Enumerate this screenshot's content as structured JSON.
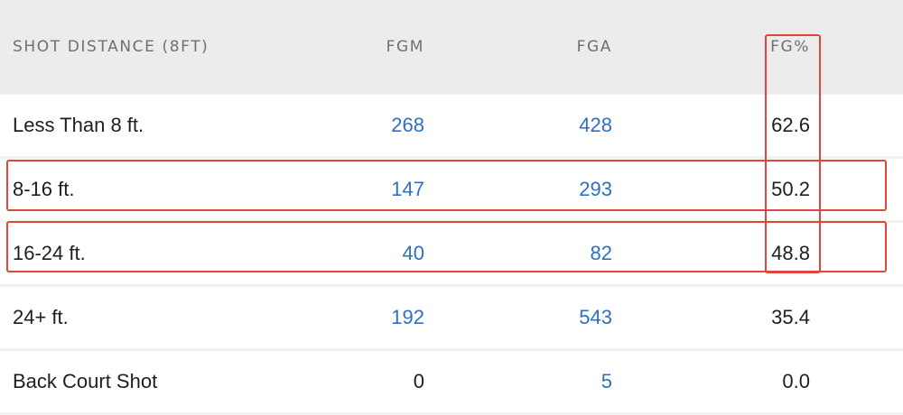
{
  "columns": [
    "SHOT DISTANCE (8FT)",
    "FGM",
    "FGA",
    "FG%"
  ],
  "rows": [
    {
      "distance": "Less Than 8 ft.",
      "fgm": "268",
      "fga": "428",
      "fg_pct": "62.6",
      "fgm_link": true,
      "fga_link": true
    },
    {
      "distance": "8-16 ft.",
      "fgm": "147",
      "fga": "293",
      "fg_pct": "50.2",
      "fgm_link": true,
      "fga_link": true
    },
    {
      "distance": "16-24 ft.",
      "fgm": "40",
      "fga": "82",
      "fg_pct": "48.8",
      "fgm_link": true,
      "fga_link": true
    },
    {
      "distance": "24+ ft.",
      "fgm": "192",
      "fga": "543",
      "fg_pct": "35.4",
      "fgm_link": true,
      "fga_link": true
    },
    {
      "distance": "Back Court Shot",
      "fgm": "0",
      "fga": "5",
      "fg_pct": "0.0",
      "fgm_link": false,
      "fga_link": true
    }
  ],
  "colors": {
    "link": "#2f6fc2",
    "text": "#1e1e1e",
    "header_text": "#6f6f6f",
    "header_bg": "#ececec",
    "row_bg": "#ffffff",
    "highlight": "#e0453b"
  }
}
